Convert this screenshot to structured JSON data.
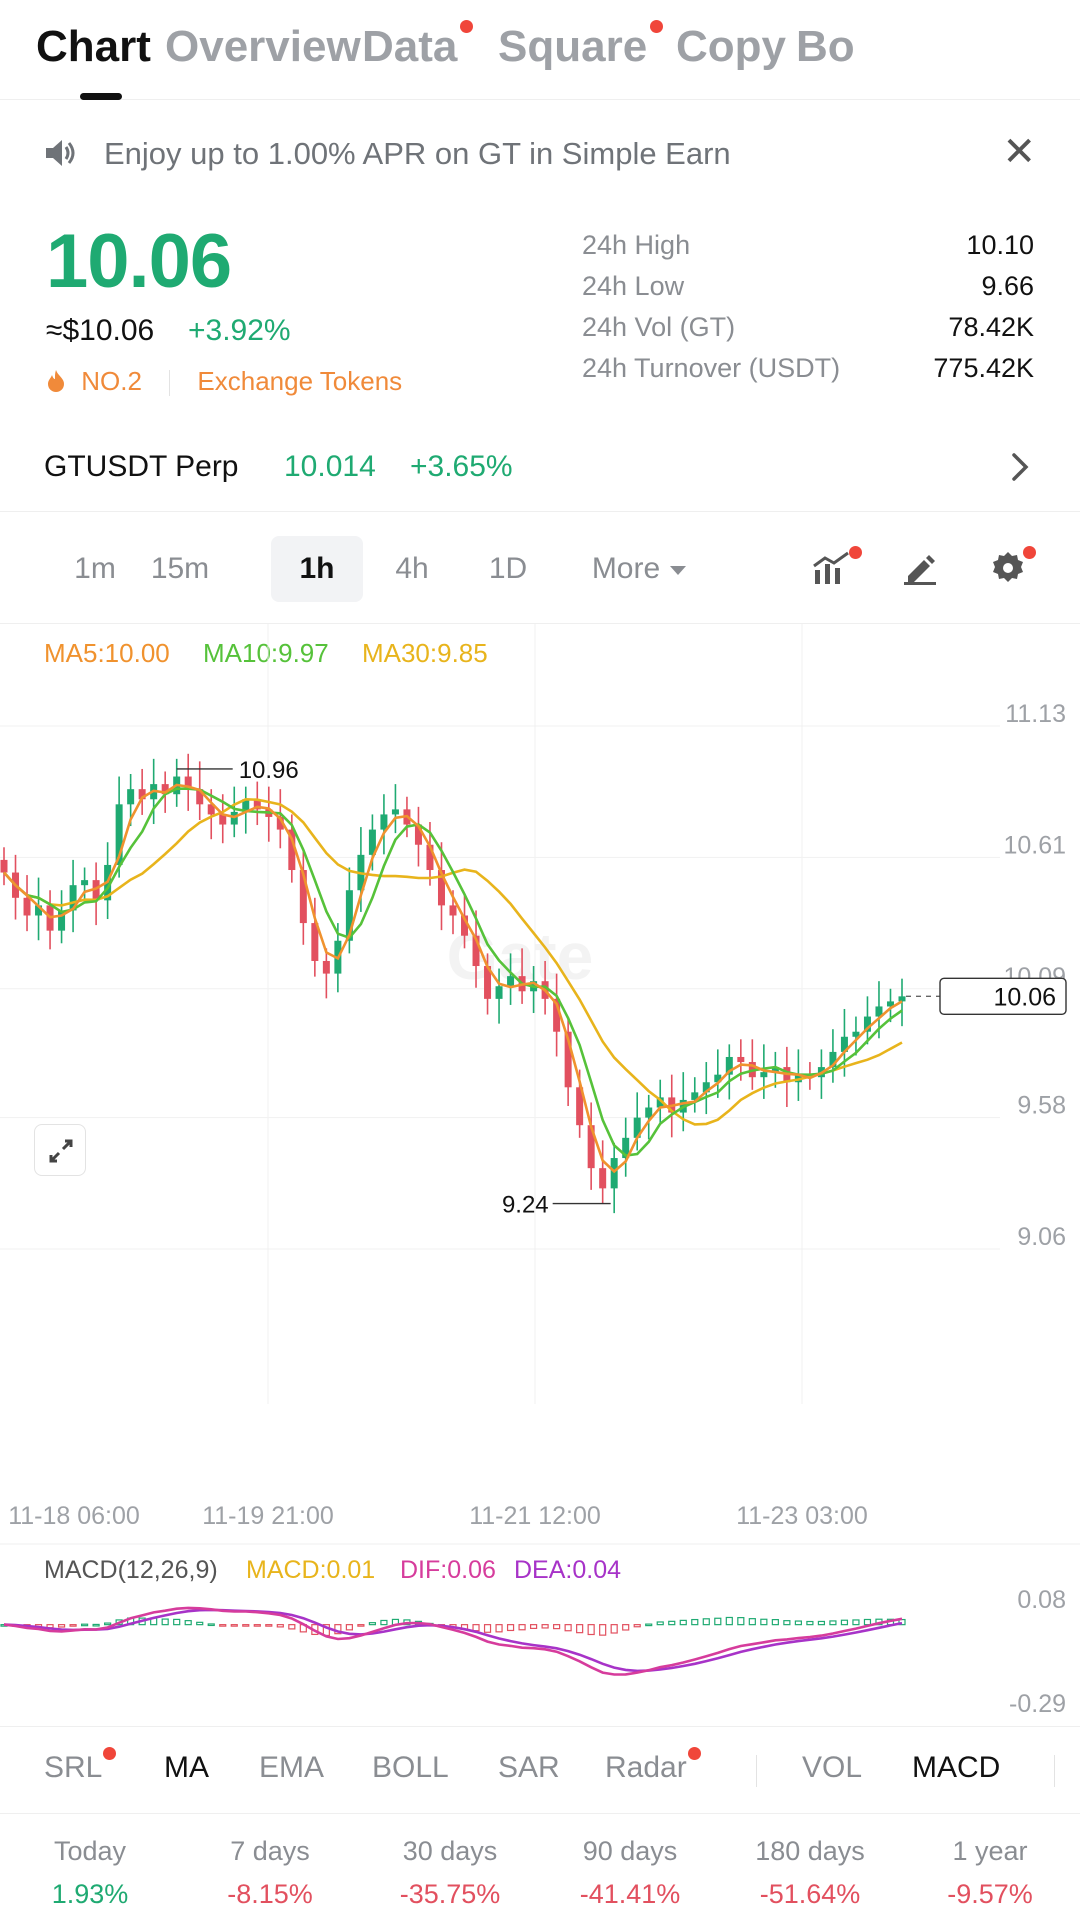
{
  "tabs": [
    {
      "label": "Chart",
      "active": true,
      "dot": false
    },
    {
      "label": "Overview",
      "active": false,
      "dot": false
    },
    {
      "label": "Data",
      "active": false,
      "dot": true
    },
    {
      "label": "Square",
      "active": false,
      "dot": true
    },
    {
      "label": "Copy",
      "active": false,
      "dot": false
    },
    {
      "label": "Bo",
      "active": false,
      "dot": false
    }
  ],
  "announcement": {
    "text": "Enjoy up to 1.00% APR on GT in Simple Earn",
    "icon": "speaker-icon",
    "close_icon": "close-icon"
  },
  "ticker": {
    "price": "10.06",
    "usd_price": "≈$10.06",
    "change": "+3.92%",
    "rank": "NO.2",
    "category": "Exchange Tokens",
    "rank_icon": "flame-icon",
    "stats": [
      {
        "label": "24h High",
        "value": "10.10"
      },
      {
        "label": "24h Low",
        "value": "9.66"
      },
      {
        "label": "24h Vol (GT)",
        "value": "78.42K"
      },
      {
        "label": "24h Turnover (USDT)",
        "value": "775.42K"
      }
    ]
  },
  "perp": {
    "name": "GTUSDT Perp",
    "price": "10.014",
    "change": "+3.65%"
  },
  "intervals": [
    "1m",
    "15m",
    "1h",
    "4h",
    "1D",
    "More"
  ],
  "active_interval": "1h",
  "tools": [
    {
      "icon": "indicator-chart-icon",
      "dot": true
    },
    {
      "icon": "pencil-draw-icon",
      "dot": false
    },
    {
      "icon": "settings-gear-icon",
      "dot": true
    }
  ],
  "ma_legend": [
    {
      "label": "MA5:10.00",
      "color": "#f0922e"
    },
    {
      "label": "MA10:9.97",
      "color": "#56c23a"
    },
    {
      "label": "MA30:9.85",
      "color": "#e8b41c"
    }
  ],
  "price_axis": [
    "11.13",
    "10.61",
    "10.09",
    "9.58",
    "9.06"
  ],
  "time_axis": [
    "11-18 06:00",
    "11-19 21:00",
    "11-21 12:00",
    "11-23 03:00"
  ],
  "high_marker": "10.96",
  "low_marker": "9.24",
  "last_price_tag": "10.06",
  "watermark": "Gate",
  "macd": {
    "title": "MACD(12,26,9)",
    "macd": "MACD:0.01",
    "dif": "DIF:0.06",
    "dea": "DEA:0.04",
    "axis": [
      "0.08",
      "-0.29"
    ],
    "colors": {
      "macd": "#e8b41c",
      "dif": "#d63c9c",
      "dea": "#a733c8"
    }
  },
  "indicators": [
    {
      "label": "SRL",
      "on": false,
      "dot": true
    },
    {
      "label": "MA",
      "on": true,
      "dot": false
    },
    {
      "label": "EMA",
      "on": false,
      "dot": false
    },
    {
      "label": "BOLL",
      "on": false,
      "dot": false
    },
    {
      "label": "SAR",
      "on": false,
      "dot": false
    },
    {
      "label": "Radar",
      "on": false,
      "dot": true
    },
    {
      "label": "VOL",
      "on": false,
      "dot": false
    },
    {
      "label": "MACD",
      "on": true,
      "dot": false
    }
  ],
  "performance": [
    {
      "label": "Today",
      "value": "1.93%",
      "positive": true
    },
    {
      "label": "7 days",
      "value": "-8.15%",
      "positive": false
    },
    {
      "label": "30 days",
      "value": "-35.75%",
      "positive": false
    },
    {
      "label": "90 days",
      "value": "-41.41%",
      "positive": false
    },
    {
      "label": "180 days",
      "value": "-51.64%",
      "positive": false
    },
    {
      "label": "1 year",
      "value": "-9.57%",
      "positive": false
    }
  ],
  "colors": {
    "up": "#1faa72",
    "down": "#e2505f",
    "accent_dot": "#f0463a",
    "rank": "#f08a3a"
  },
  "chart_data": {
    "type": "candlestick",
    "interval": "1h",
    "y_range": [
      9.06,
      11.13
    ],
    "x_ticks": [
      "11-18 06:00",
      "11-19 21:00",
      "11-21 12:00",
      "11-23 03:00"
    ],
    "candles_approx_close": [
      10.55,
      10.45,
      10.38,
      10.42,
      10.32,
      10.4,
      10.5,
      10.52,
      10.44,
      10.58,
      10.82,
      10.88,
      10.84,
      10.9,
      10.86,
      10.93,
      10.88,
      10.82,
      10.78,
      10.74,
      10.79,
      10.84,
      10.8,
      10.77,
      10.72,
      10.56,
      10.35,
      10.2,
      10.15,
      10.28,
      10.48,
      10.62,
      10.72,
      10.78,
      10.8,
      10.74,
      10.66,
      10.56,
      10.42,
      10.38,
      10.3,
      10.18,
      10.05,
      10.1,
      10.14,
      10.08,
      10.12,
      10.05,
      9.92,
      9.7,
      9.55,
      9.38,
      9.3,
      9.42,
      9.5,
      9.58,
      9.62,
      9.66,
      9.6,
      9.65,
      9.68,
      9.72,
      9.75,
      9.82,
      9.8,
      9.74,
      9.76,
      9.78,
      9.72,
      9.75,
      9.74,
      9.78,
      9.84,
      9.9,
      9.92,
      9.98,
      10.02,
      10.04,
      10.06
    ],
    "high": 10.96,
    "low": 9.24,
    "last": 10.06,
    "series": [
      {
        "name": "MA5",
        "value": 10.0
      },
      {
        "name": "MA10",
        "value": 9.97
      },
      {
        "name": "MA30",
        "value": 9.85
      }
    ],
    "macd": {
      "macd": 0.01,
      "dif": 0.06,
      "dea": 0.04,
      "y_range": [
        -0.29,
        0.08
      ]
    }
  }
}
